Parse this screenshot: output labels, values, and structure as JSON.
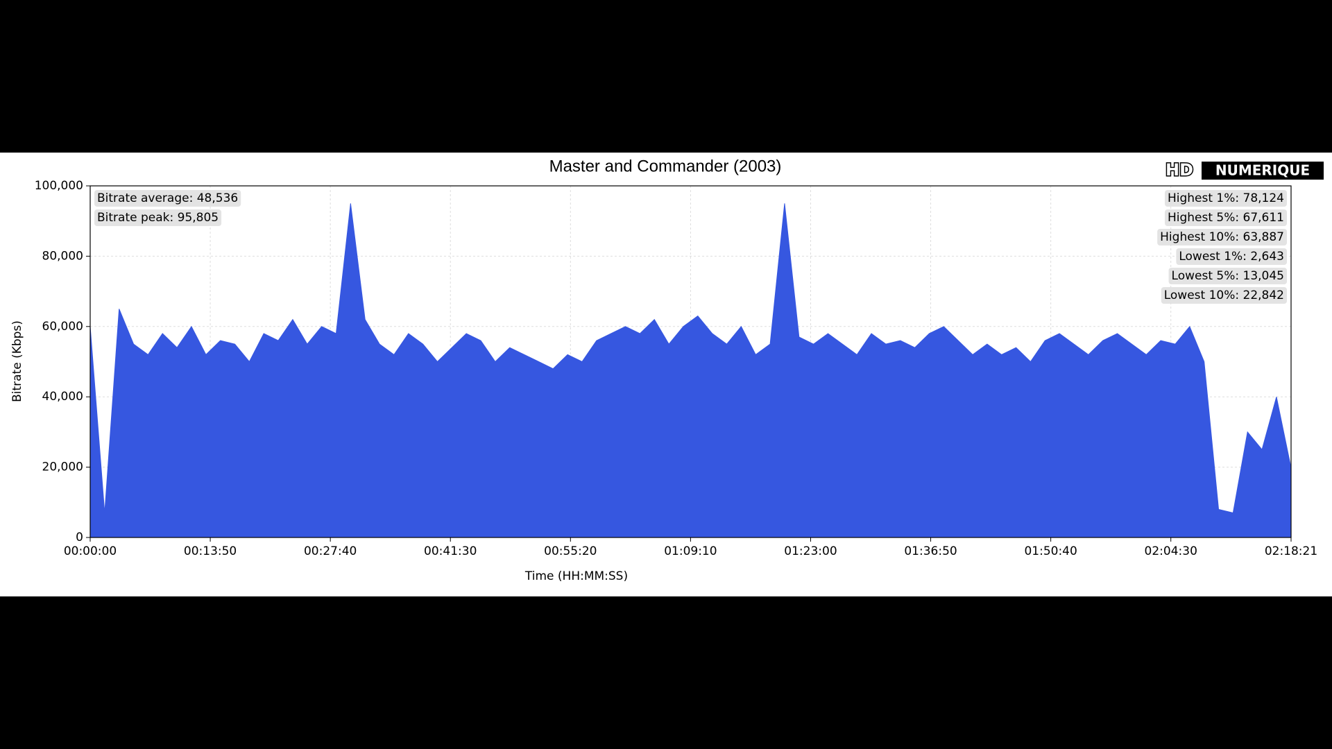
{
  "chart_data": {
    "type": "area",
    "title": "Master and Commander (2003)",
    "logo": [
      "HD",
      "NUMERIQUE"
    ],
    "xlabel": "Time (HH:MM:SS)",
    "ylabel": "Bitrate (Kbps)",
    "x": [
      0,
      100,
      200,
      300,
      400,
      500,
      600,
      700,
      800,
      900,
      1000,
      1100,
      1200,
      1300,
      1400,
      1500,
      1600,
      1700,
      1800,
      1900,
      2000,
      2100,
      2200,
      2300,
      2400,
      2500,
      2600,
      2700,
      2800,
      2900,
      3000,
      3100,
      3200,
      3300,
      3400,
      3500,
      3600,
      3700,
      3800,
      3900,
      4000,
      4100,
      4200,
      4300,
      4400,
      4500,
      4600,
      4700,
      4800,
      4900,
      5000,
      5100,
      5200,
      5300,
      5400,
      5500,
      5600,
      5700,
      5800,
      5900,
      6000,
      6100,
      6200,
      6300,
      6400,
      6500,
      6600,
      6700,
      6800,
      6900,
      7000,
      7100,
      7200,
      7300,
      7400,
      7500,
      7600,
      7700,
      7800,
      7900,
      8000,
      8100,
      8200,
      8300
    ],
    "series": [
      {
        "color": "#3657e0",
        "values": [
          60000,
          7000,
          65000,
          55000,
          52000,
          58000,
          54000,
          60000,
          52000,
          56000,
          55000,
          50000,
          58000,
          56000,
          62000,
          55000,
          60000,
          58000,
          95000,
          62000,
          55000,
          52000,
          58000,
          55000,
          50000,
          54000,
          58000,
          56000,
          50000,
          54000,
          52000,
          50000,
          48000,
          52000,
          50000,
          56000,
          58000,
          60000,
          58000,
          62000,
          55000,
          60000,
          63000,
          58000,
          55000,
          60000,
          52000,
          55000,
          95000,
          57000,
          55000,
          58000,
          55000,
          52000,
          58000,
          55000,
          56000,
          54000,
          58000,
          60000,
          56000,
          52000,
          55000,
          52000,
          54000,
          50000,
          56000,
          58000,
          55000,
          52000,
          56000,
          58000,
          55000,
          52000,
          56000,
          55000,
          60000,
          50000,
          8000,
          7000,
          30000,
          25000,
          40000,
          20000
        ]
      }
    ],
    "xlim": [
      0,
      8301
    ],
    "xticks": [
      {
        "value": 0,
        "label": "00:00:00"
      },
      {
        "value": 830,
        "label": "00:13:50"
      },
      {
        "value": 1660,
        "label": "00:27:40"
      },
      {
        "value": 2490,
        "label": "00:41:30"
      },
      {
        "value": 3320,
        "label": "00:55:20"
      },
      {
        "value": 4150,
        "label": "01:09:10"
      },
      {
        "value": 4980,
        "label": "01:23:00"
      },
      {
        "value": 5810,
        "label": "01:36:50"
      },
      {
        "value": 6640,
        "label": "01:50:40"
      },
      {
        "value": 7470,
        "label": "02:04:30"
      },
      {
        "value": 8301,
        "label": "02:18:21"
      }
    ],
    "ylim": [
      0,
      100000
    ],
    "yticks": [
      0,
      {
        "value": 20000,
        "label": "20,000"
      },
      {
        "value": 40000,
        "label": "40,000"
      },
      {
        "value": 60000,
        "label": "60,000"
      },
      {
        "value": 80000,
        "label": "80,000"
      },
      {
        "value": 100000,
        "label": "100,000"
      }
    ],
    "grid": true,
    "annotations_left": [
      "Bitrate average: 48,536",
      "Bitrate peak: 95,805"
    ],
    "annotations_right": [
      "Highest 1%: 78,124",
      "Highest 5%: 67,611",
      "Highest 10%: 63,887",
      "Lowest 1%: 2,643",
      "Lowest 5%: 13,045",
      "Lowest 10%: 22,842"
    ]
  }
}
